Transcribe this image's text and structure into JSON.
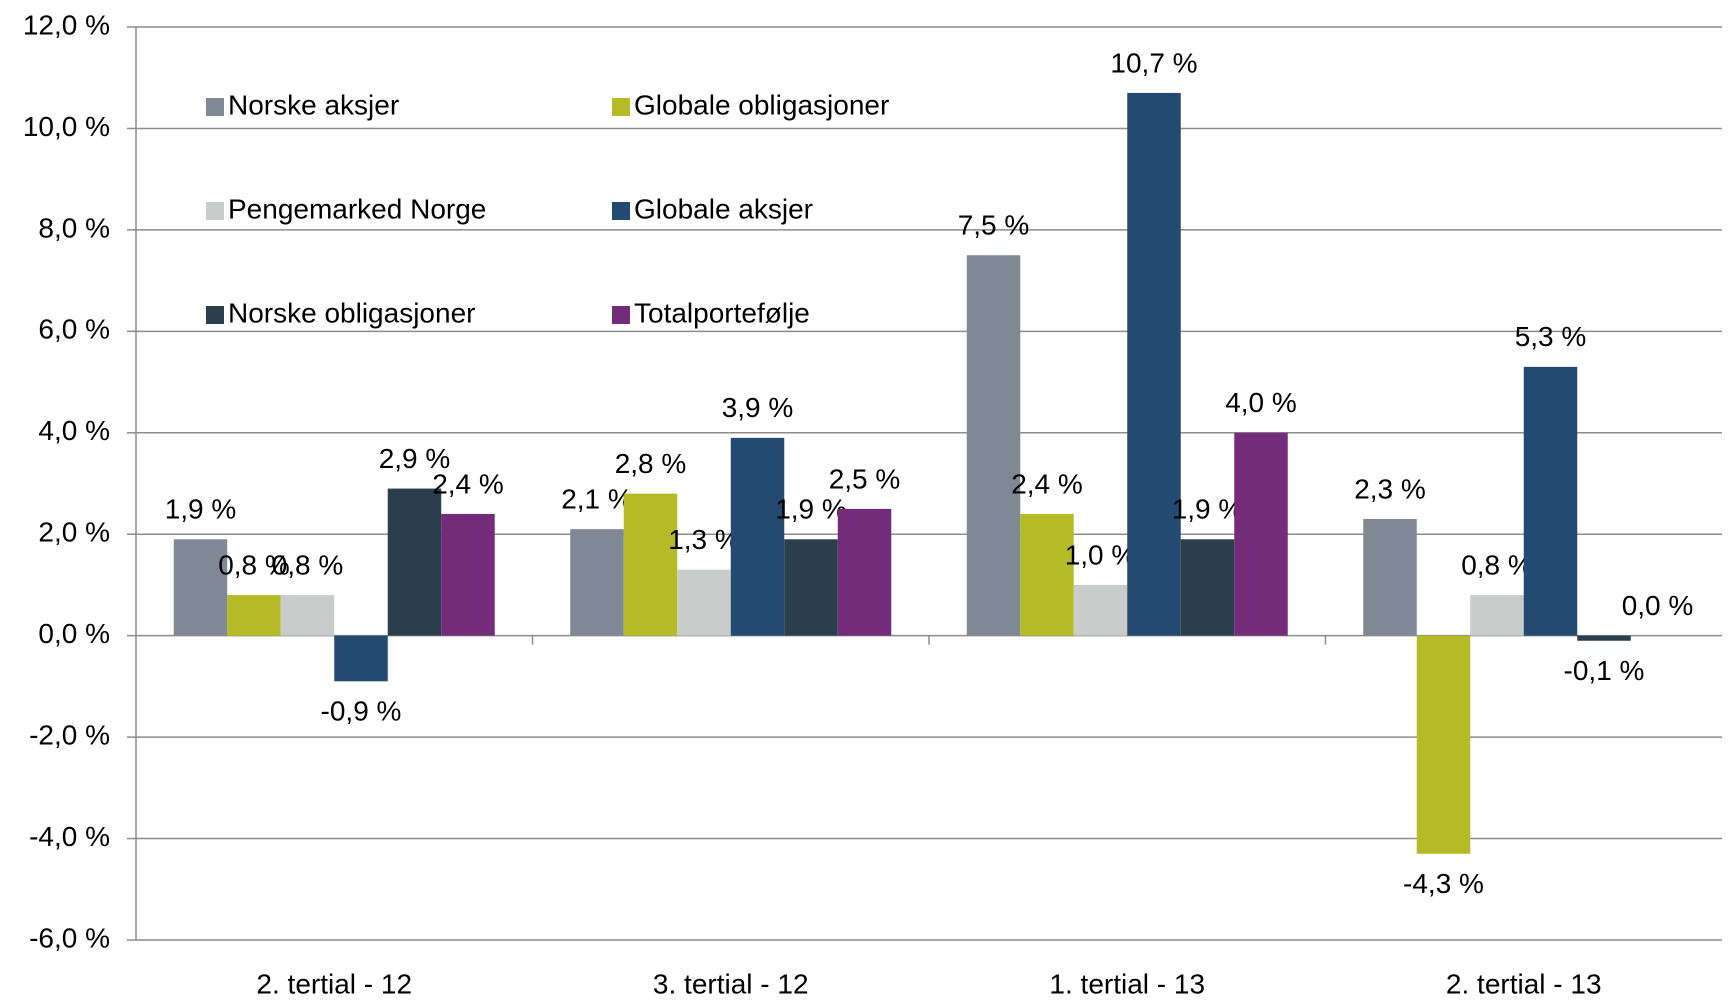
{
  "chart_data": {
    "type": "bar",
    "categories": [
      "2. tertial - 12",
      "3. tertial - 12",
      "1. tertial - 13",
      "2. tertial - 13"
    ],
    "series": [
      {
        "name": "Norske aksjer",
        "color": "#808896",
        "values": [
          1.9,
          2.1,
          7.5,
          2.3
        ],
        "value_labels": [
          "1,9 %",
          "2,1 %",
          "7,5 %",
          "2,3 %"
        ]
      },
      {
        "name": "Globale obligasjoner",
        "color": "#b5bb27",
        "values": [
          0.8,
          2.8,
          2.4,
          -4.3
        ],
        "value_labels": [
          "0,8 %",
          "2,8 %",
          "2,4 %",
          "-4,3 %"
        ]
      },
      {
        "name": "Pengemarked Norge",
        "color": "#cacbcb",
        "values": [
          0.8,
          1.3,
          1.0,
          0.8
        ],
        "value_labels": [
          "0,8 %",
          "1,3 %",
          "1,0 %",
          "0,8 %"
        ]
      },
      {
        "name": "Globale aksjer",
        "color": "#254a72",
        "values": [
          -0.9,
          3.9,
          10.7,
          5.3
        ],
        "value_labels": [
          "-0,9 %",
          "3,9 %",
          "10,7 %",
          "5,3 %"
        ]
      },
      {
        "name": "Norske obligasjoner",
        "color": "#2b3e4b",
        "values": [
          2.9,
          1.9,
          1.9,
          -0.1
        ],
        "value_labels": [
          "2,9 %",
          "1,9 %",
          "1,9 %",
          "-0,1 %"
        ]
      },
      {
        "name": "Totalportefølje",
        "color": "#722c7a",
        "values": [
          2.4,
          2.5,
          4.0,
          0.0
        ],
        "value_labels": [
          "2,4 %",
          "2,5 %",
          "4,0 %",
          "0,0 %"
        ]
      }
    ],
    "ylim": [
      -6,
      12
    ],
    "yticks": [
      {
        "value": -6,
        "label": "-6,0 %"
      },
      {
        "value": -4,
        "label": "-4,0 %"
      },
      {
        "value": -2,
        "label": "-2,0 %"
      },
      {
        "value": 0,
        "label": "0,0 %"
      },
      {
        "value": 2,
        "label": "2,0 %"
      },
      {
        "value": 4,
        "label": "4,0 %"
      },
      {
        "value": 6,
        "label": "6,0 %"
      },
      {
        "value": 8,
        "label": "8,0 %"
      },
      {
        "value": 10,
        "label": "10,0 %"
      },
      {
        "value": 12,
        "label": "12,0 %"
      }
    ],
    "grid": true,
    "legend": "upper left"
  }
}
